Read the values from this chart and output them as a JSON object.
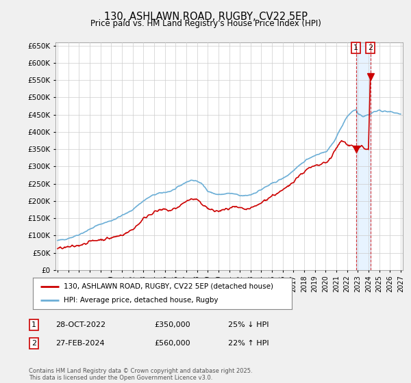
{
  "title": "130, ASHLAWN ROAD, RUGBY, CV22 5EP",
  "subtitle": "Price paid vs. HM Land Registry's House Price Index (HPI)",
  "ylim": [
    0,
    660000
  ],
  "yticks": [
    0,
    50000,
    100000,
    150000,
    200000,
    250000,
    300000,
    350000,
    400000,
    450000,
    500000,
    550000,
    600000,
    650000
  ],
  "xlim_start": 1994.8,
  "xlim_end": 2027.2,
  "xticks": [
    1995,
    1996,
    1997,
    1998,
    1999,
    2000,
    2001,
    2002,
    2003,
    2004,
    2005,
    2006,
    2007,
    2008,
    2009,
    2010,
    2011,
    2012,
    2013,
    2014,
    2015,
    2016,
    2017,
    2018,
    2019,
    2020,
    2021,
    2022,
    2023,
    2024,
    2025,
    2026,
    2027
  ],
  "hpi_color": "#6baed6",
  "price_color": "#cc0000",
  "marker_color": "#cc0000",
  "vline_color": "#cc0000",
  "shade_color": "#ddeeff",
  "point1_x": 2022.83,
  "point1_y": 350000,
  "point2_x": 2024.17,
  "point2_y": 560000,
  "legend_label1": "130, ASHLAWN ROAD, RUGBY, CV22 5EP (detached house)",
  "legend_label2": "HPI: Average price, detached house, Rugby",
  "table_row1_num": "1",
  "table_row1_date": "28-OCT-2022",
  "table_row1_price": "£350,000",
  "table_row1_hpi": "25% ↓ HPI",
  "table_row2_num": "2",
  "table_row2_date": "27-FEB-2024",
  "table_row2_price": "£560,000",
  "table_row2_hpi": "22% ↑ HPI",
  "footer": "Contains HM Land Registry data © Crown copyright and database right 2025.\nThis data is licensed under the Open Government Licence v3.0.",
  "background_color": "#f0f0f0",
  "plot_bg_color": "#ffffff",
  "grid_color": "#cccccc"
}
